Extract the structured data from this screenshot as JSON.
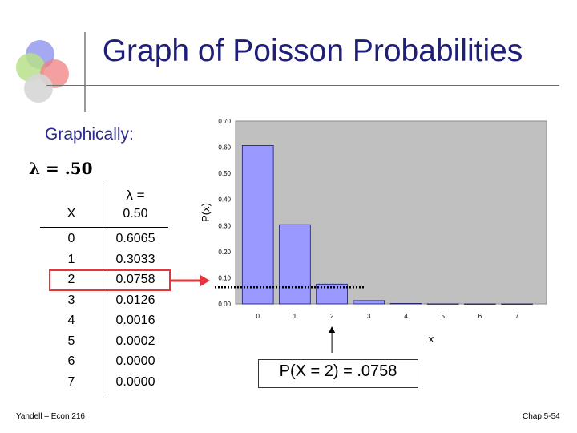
{
  "slide": {
    "title": "Graph of Poisson Probabilities",
    "subtitle": "Graphically:",
    "lambda_line": "λ = .50",
    "callout": "P(X = 2) = .0758",
    "footer_left": "Yandell – Econ 216",
    "footer_right": "Chap 5-54"
  },
  "table": {
    "header_x": "X",
    "header_p_line1": "λ =",
    "header_p_line2": "0.50",
    "rows": [
      {
        "x": "0",
        "p": "0.6065"
      },
      {
        "x": "1",
        "p": "0.3033"
      },
      {
        "x": "2",
        "p": "0.0758"
      },
      {
        "x": "3",
        "p": "0.0126"
      },
      {
        "x": "4",
        "p": "0.0016"
      },
      {
        "x": "5",
        "p": "0.0002"
      },
      {
        "x": "6",
        "p": "0.0000"
      },
      {
        "x": "7",
        "p": "0.0000"
      }
    ],
    "highlight_row": 2,
    "highlight_color": "#e8333a"
  },
  "chart_data": {
    "type": "bar",
    "categories": [
      "0",
      "1",
      "2",
      "3",
      "4",
      "5",
      "6",
      "7"
    ],
    "values": [
      0.6065,
      0.3033,
      0.0758,
      0.0126,
      0.0016,
      0.0002,
      0.0,
      0.0
    ],
    "xlabel": "x",
    "ylabel": "P(x)",
    "ylim": [
      0,
      0.7
    ],
    "yticks": [
      "0.00",
      "0.10",
      "0.20",
      "0.30",
      "0.40",
      "0.50",
      "0.60",
      "0.70"
    ],
    "bar_color": "#9999ff",
    "plot_bg": "#c0c0c0",
    "grid": false,
    "highlight_value": 0.0758
  },
  "colors": {
    "title": "#1f1f7a",
    "arrow": "#e8333a"
  }
}
